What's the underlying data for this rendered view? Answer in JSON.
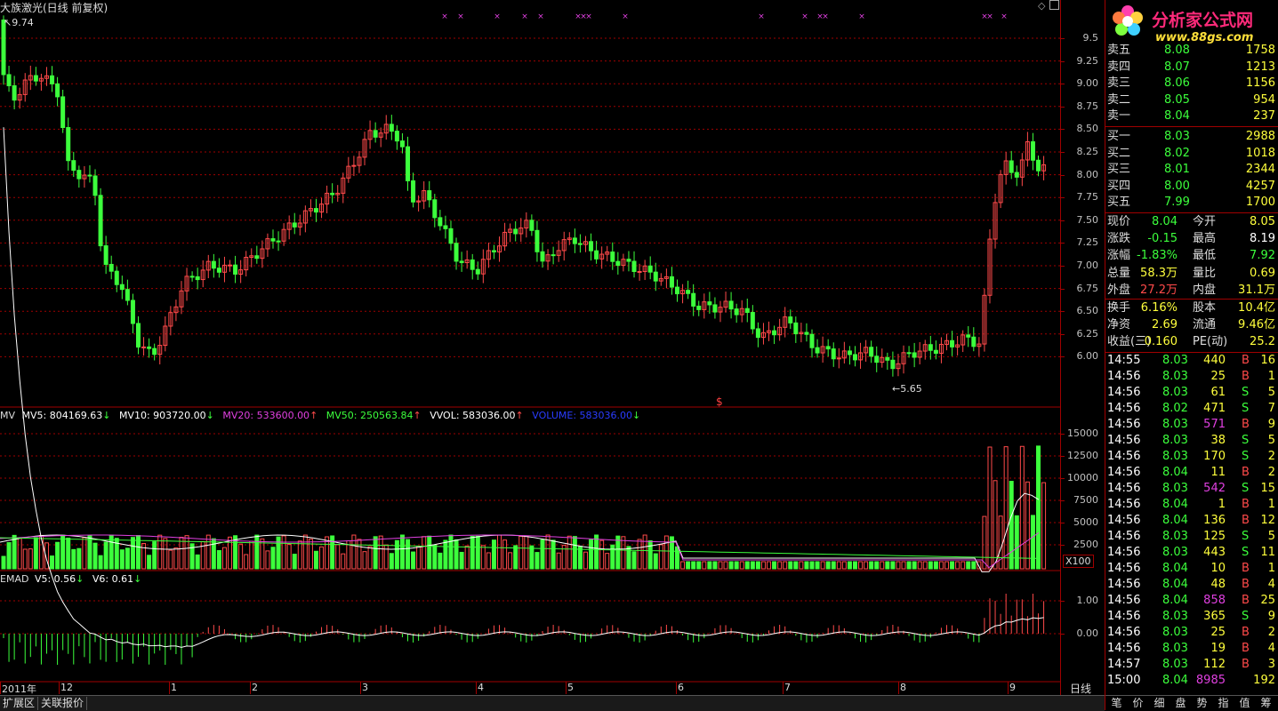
{
  "title": "大族激光(日线 前复权)",
  "price_chart": {
    "high_label": "9.74",
    "low_label": "5.65",
    "marker": "$",
    "y_ticks": [
      "9.5",
      "9.25",
      "9.00",
      "8.75",
      "8.50",
      "8.25",
      "8.00",
      "7.75",
      "7.50",
      "7.25",
      "7.00",
      "6.75",
      "6.50",
      "6.25",
      "6.00"
    ]
  },
  "volume_chart": {
    "label_mv": "MV",
    "mv5": "MV5: 804169.63",
    "mv10": "MV10: 903720.00",
    "mv20": "MV20: 533600.00",
    "mv50": "MV50: 250563.84",
    "vvol": "VVOL: 583036.00",
    "volume": "VOLUME: 583036.00",
    "y_ticks": [
      "15000",
      "12500",
      "10000",
      "7500",
      "5000",
      "2500"
    ],
    "unit": "X100"
  },
  "emad_chart": {
    "label": "EMAD",
    "v5": "V5: 0.56",
    "v6": "V6: 0.61",
    "y_ticks": [
      "1.00",
      "0.00"
    ]
  },
  "x_axis": {
    "labels": [
      "2011年",
      "12",
      "1",
      "2",
      "3",
      "4",
      "5",
      "6",
      "7",
      "8",
      "9"
    ],
    "period": "日线"
  },
  "bottom_tabs": [
    "扩展区",
    "关联报价"
  ],
  "logo": {
    "title": "分析家公式网",
    "url": "www.88gs.com"
  },
  "order_book": {
    "asks": [
      {
        "label": "卖五",
        "price": "8.08",
        "vol": "1758"
      },
      {
        "label": "卖四",
        "price": "8.07",
        "vol": "1213"
      },
      {
        "label": "卖三",
        "price": "8.06",
        "vol": "1156"
      },
      {
        "label": "卖二",
        "price": "8.05",
        "vol": "954"
      },
      {
        "label": "卖一",
        "price": "8.04",
        "vol": "237"
      }
    ],
    "bids": [
      {
        "label": "买一",
        "price": "8.03",
        "vol": "2988"
      },
      {
        "label": "买二",
        "price": "8.02",
        "vol": "1018"
      },
      {
        "label": "买三",
        "price": "8.01",
        "vol": "2344"
      },
      {
        "label": "买四",
        "price": "8.00",
        "vol": "4257"
      },
      {
        "label": "买五",
        "price": "7.99",
        "vol": "1700"
      }
    ]
  },
  "quote": [
    {
      "l1": "现价",
      "v1": "8.04",
      "l2": "今开",
      "v2": "8.05"
    },
    {
      "l1": "涨跌",
      "v1": "-0.15",
      "l2": "最高",
      "v2": "8.19"
    },
    {
      "l1": "涨幅",
      "v1": "-1.83%",
      "l2": "最低",
      "v2": "7.92"
    },
    {
      "l1": "总量",
      "v1": "58.3万",
      "l2": "量比",
      "v2": "0.69"
    },
    {
      "l1": "外盘",
      "v1": "27.2万",
      "l2": "内盘",
      "v2": "31.1万"
    }
  ],
  "fundamentals": [
    {
      "l1": "换手",
      "v1": "6.16%",
      "l2": "股本",
      "v2": "10.4亿"
    },
    {
      "l1": "净资",
      "v1": "2.69",
      "l2": "流通",
      "v2": "9.46亿"
    },
    {
      "l1": "收益(三)",
      "v1": "0.160",
      "l2": "PE(动)",
      "v2": "25.2"
    }
  ],
  "ticks": [
    {
      "t": "14:55",
      "p": "8.03",
      "v": "440",
      "s": "B",
      "n": "16"
    },
    {
      "t": "14:56",
      "p": "8.03",
      "v": "25",
      "s": "B",
      "n": "1"
    },
    {
      "t": "14:56",
      "p": "8.03",
      "v": "61",
      "s": "S",
      "n": "5"
    },
    {
      "t": "14:56",
      "p": "8.02",
      "v": "471",
      "s": "S",
      "n": "7"
    },
    {
      "t": "14:56",
      "p": "8.03",
      "v": "571",
      "s": "B",
      "n": "9"
    },
    {
      "t": "14:56",
      "p": "8.03",
      "v": "38",
      "s": "S",
      "n": "5"
    },
    {
      "t": "14:56",
      "p": "8.03",
      "v": "170",
      "s": "S",
      "n": "2"
    },
    {
      "t": "14:56",
      "p": "8.04",
      "v": "11",
      "s": "B",
      "n": "2"
    },
    {
      "t": "14:56",
      "p": "8.03",
      "v": "542",
      "s": "S",
      "n": "15"
    },
    {
      "t": "14:56",
      "p": "8.04",
      "v": "1",
      "s": "B",
      "n": "1"
    },
    {
      "t": "14:56",
      "p": "8.04",
      "v": "136",
      "s": "B",
      "n": "12"
    },
    {
      "t": "14:56",
      "p": "8.03",
      "v": "125",
      "s": "S",
      "n": "5"
    },
    {
      "t": "14:56",
      "p": "8.03",
      "v": "443",
      "s": "S",
      "n": "11"
    },
    {
      "t": "14:56",
      "p": "8.04",
      "v": "10",
      "s": "B",
      "n": "1"
    },
    {
      "t": "14:56",
      "p": "8.04",
      "v": "48",
      "s": "B",
      "n": "4"
    },
    {
      "t": "14:56",
      "p": "8.04",
      "v": "858",
      "s": "B",
      "n": "25"
    },
    {
      "t": "14:56",
      "p": "8.03",
      "v": "365",
      "s": "S",
      "n": "9"
    },
    {
      "t": "14:56",
      "p": "8.03",
      "v": "25",
      "s": "B",
      "n": "2"
    },
    {
      "t": "14:56",
      "p": "8.03",
      "v": "19",
      "s": "B",
      "n": "4"
    },
    {
      "t": "14:57",
      "p": "8.03",
      "v": "112",
      "s": "B",
      "n": "3"
    },
    {
      "t": "15:00",
      "p": "8.04",
      "v": "8985",
      "s": "",
      "n": "192"
    }
  ],
  "panel_tabs": [
    "笔",
    "价",
    "细",
    "盘",
    "势",
    "指",
    "值",
    "筹"
  ],
  "colors": {
    "up": "#ff4a4a",
    "down": "#3cff3c",
    "grid": "#a00000"
  }
}
